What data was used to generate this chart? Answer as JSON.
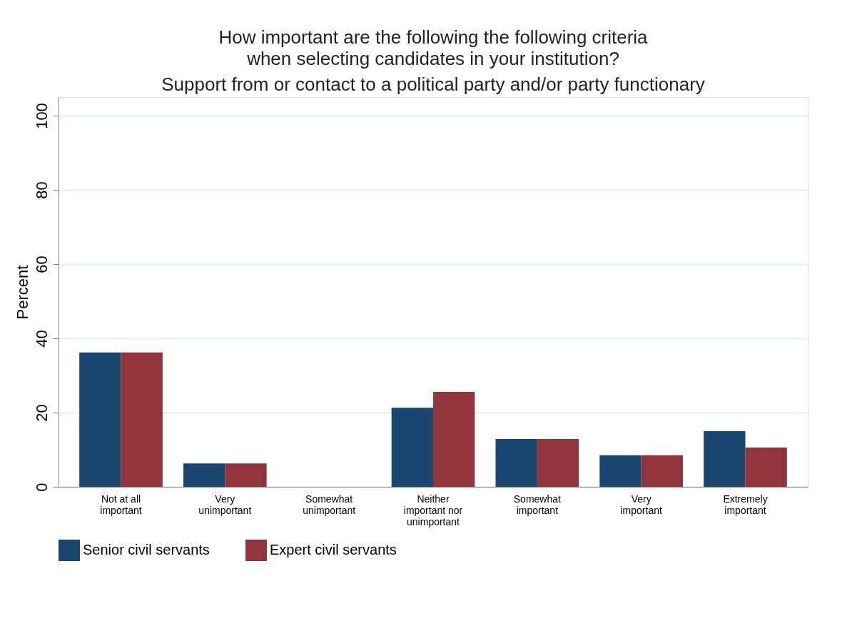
{
  "chart_data": {
    "type": "bar",
    "title": "How important are the following the following criteria\nwhen selecting candidates in your institution?",
    "subtitle": "Support from or contact to a political party and/or party functionary",
    "ylabel": "Percent",
    "categories": [
      "Not at all\nimportant",
      "Very\nunimportant",
      "Somewhat\nunimportant",
      "Neither\nimportant nor\nunimportant",
      "Somewhat\nimportant",
      "Very\nimportant",
      "Extremely\nimportant"
    ],
    "series": [
      {
        "name": "Senior civil servants",
        "color": "#1a476f",
        "values": [
          36.2,
          6.3,
          0,
          21.3,
          12.9,
          8.5,
          15.0
        ]
      },
      {
        "name": "Expert civil servants",
        "color": "#90353b",
        "values": [
          36.2,
          6.3,
          0,
          25.6,
          12.9,
          8.5,
          10.6
        ]
      }
    ],
    "ylim": [
      0,
      105
    ],
    "yticks": [
      0,
      20,
      40,
      60,
      80,
      100
    ],
    "grid": "y",
    "legend": "bottom"
  }
}
